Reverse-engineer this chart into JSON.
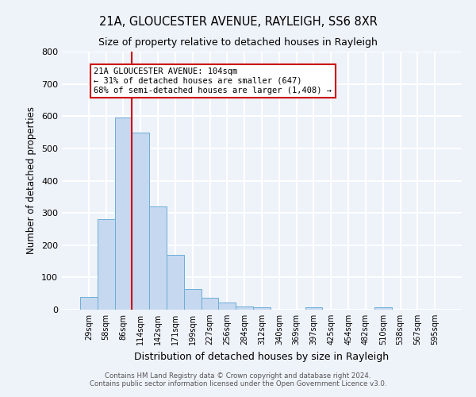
{
  "title": "21A, GLOUCESTER AVENUE, RAYLEIGH, SS6 8XR",
  "subtitle": "Size of property relative to detached houses in Rayleigh",
  "xlabel": "Distribution of detached houses by size in Rayleigh",
  "ylabel": "Number of detached properties",
  "bar_labels": [
    "29sqm",
    "58sqm",
    "86sqm",
    "114sqm",
    "142sqm",
    "171sqm",
    "199sqm",
    "227sqm",
    "256sqm",
    "284sqm",
    "312sqm",
    "340sqm",
    "369sqm",
    "397sqm",
    "425sqm",
    "454sqm",
    "482sqm",
    "510sqm",
    "538sqm",
    "567sqm",
    "595sqm"
  ],
  "bar_values": [
    40,
    280,
    595,
    550,
    320,
    170,
    65,
    38,
    22,
    10,
    7,
    0,
    0,
    7,
    0,
    0,
    0,
    8,
    0,
    0,
    0
  ],
  "bar_color": "#c5d8f0",
  "bar_edge_color": "#6baed6",
  "vline_x": 2.5,
  "vline_color": "#cc0000",
  "ylim": [
    0,
    800
  ],
  "yticks": [
    0,
    100,
    200,
    300,
    400,
    500,
    600,
    700,
    800
  ],
  "annotation_title": "21A GLOUCESTER AVENUE: 104sqm",
  "annotation_line1": "← 31% of detached houses are smaller (647)",
  "annotation_line2": "68% of semi-detached houses are larger (1,408) →",
  "annotation_box_color": "#ffffff",
  "annotation_box_edge": "#cc0000",
  "background_color": "#eef2f9",
  "grid_color": "#ffffff",
  "footer1": "Contains HM Land Registry data © Crown copyright and database right 2024.",
  "footer2": "Contains public sector information licensed under the Open Government Licence v3.0."
}
